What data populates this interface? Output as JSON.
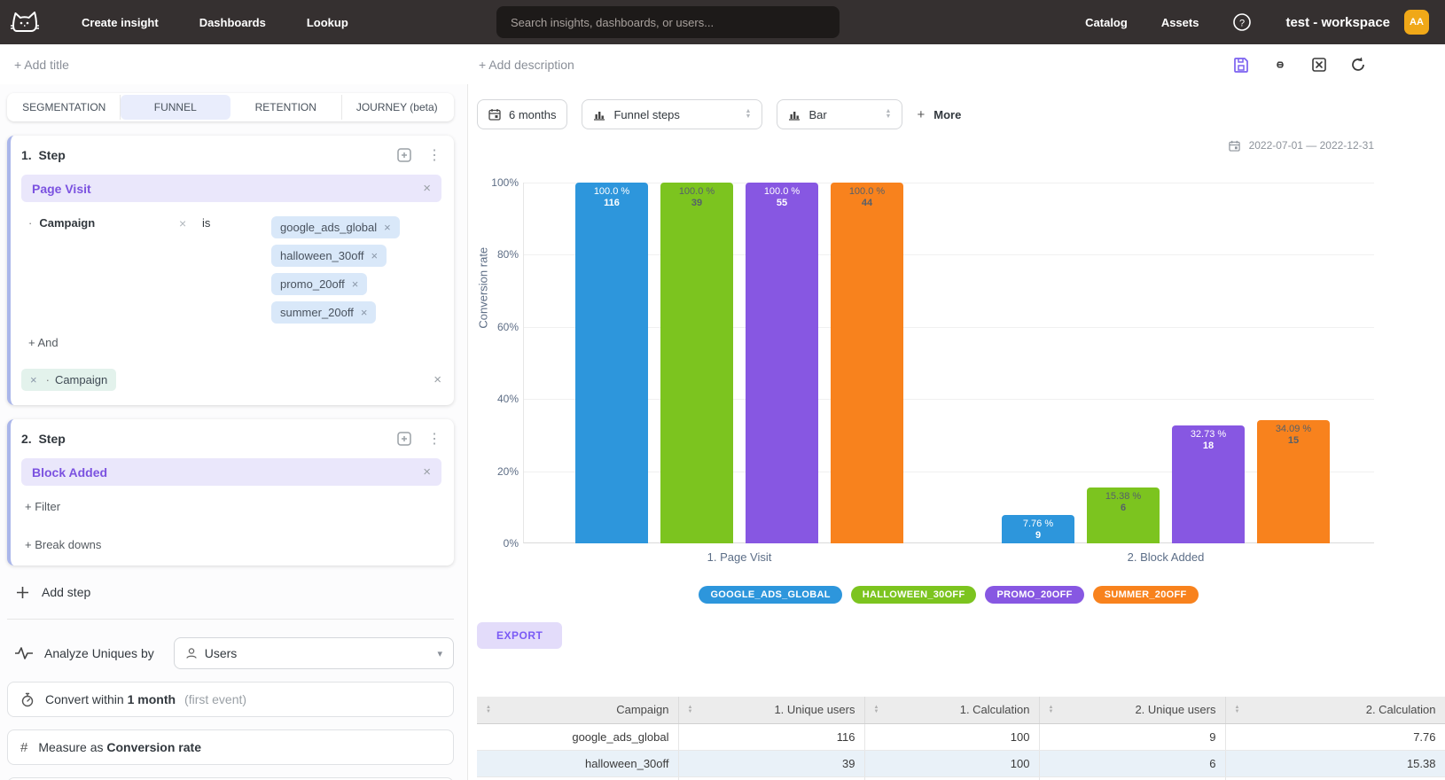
{
  "nav": {
    "links": [
      {
        "id": "create-insight",
        "label": "Create insight"
      },
      {
        "id": "dashboards",
        "label": "Dashboards"
      },
      {
        "id": "lookup",
        "label": "Lookup"
      }
    ],
    "search_placeholder": "Search insights, dashboards, or users...",
    "right_links": [
      {
        "id": "catalog",
        "label": "Catalog"
      },
      {
        "id": "assets",
        "label": "Assets"
      }
    ],
    "workspace": "test - workspace",
    "avatar": "AA"
  },
  "header": {
    "add_title": "+ Add title",
    "add_description": "+ Add description"
  },
  "tabs": [
    {
      "label": "SEGMENTATION",
      "active": false
    },
    {
      "label": "FUNNEL",
      "active": true
    },
    {
      "label": "RETENTION",
      "active": false
    },
    {
      "label": "JOURNEY (beta)",
      "active": false
    }
  ],
  "steps": {
    "0": {
      "number": "1.",
      "title": "Step",
      "event": "Page Visit",
      "filter_property": "Campaign",
      "filter_operator": "is",
      "filter_values": [
        "google_ads_global",
        "halloween_30off",
        "promo_20off",
        "summer_20off"
      ],
      "add_and": "+ And",
      "breakdown": "Campaign"
    },
    "1": {
      "number": "2.",
      "title": "Step",
      "event": "Block Added",
      "add_filter": "+ Filter",
      "add_breakdowns": "+ Break downs"
    }
  },
  "footer_controls": {
    "add_step": "Add step",
    "analyze_label": "Analyze Uniques by",
    "analyze_value": "Users",
    "convert_prefix": "Convert within",
    "convert_value": "1 month",
    "convert_suffix": "(first event)",
    "measure_prefix": "Measure as",
    "measure_value": "Conversion rate"
  },
  "chart_controls": {
    "range": "6 months",
    "view": "Funnel steps",
    "chart_type": "Bar",
    "more": "More",
    "date_range": "2022-07-01 — 2022-12-31"
  },
  "chart_data": {
    "type": "bar",
    "ylabel": "Conversion rate",
    "ylim": [
      0,
      100
    ],
    "yticks": [
      "100%",
      "80%",
      "60%",
      "40%",
      "20%",
      "0%"
    ],
    "grid": true,
    "legend_position": "bottom",
    "categories": [
      "1. Page Visit",
      "2. Block Added"
    ],
    "series": [
      {
        "name": "GOOGLE_ADS_GLOBAL",
        "color": "#2d96dc",
        "label_color": "#ffffff",
        "values": [
          100.0,
          7.76
        ],
        "value_labels": [
          "100.0 %",
          "7.76 %"
        ],
        "counts": [
          "116",
          "9"
        ]
      },
      {
        "name": "HALLOWEEN_30OFF",
        "color": "#7cc41f",
        "label_color": "#56606a",
        "values": [
          100.0,
          15.38
        ],
        "value_labels": [
          "100.0 %",
          "15.38 %"
        ],
        "counts": [
          "39",
          "6"
        ]
      },
      {
        "name": "PROMO_20OFF",
        "color": "#8757e2",
        "label_color": "#ffffff",
        "values": [
          100.0,
          32.73
        ],
        "value_labels": [
          "100.0 %",
          "32.73 %"
        ],
        "counts": [
          "55",
          "18"
        ]
      },
      {
        "name": "SUMMER_20OFF",
        "color": "#f8821d",
        "label_color": "#56606a",
        "values": [
          100.0,
          34.09
        ],
        "value_labels": [
          "100.0 %",
          "34.09 %"
        ],
        "counts": [
          "44",
          "15"
        ]
      }
    ]
  },
  "export_label": "EXPORT",
  "table": {
    "columns": [
      "Campaign",
      "1. Unique users",
      "1. Calculation",
      "2. Unique users",
      "2. Calculation"
    ],
    "rows": [
      [
        "google_ads_global",
        "116",
        "100",
        "9",
        "7.76"
      ],
      [
        "halloween_30off",
        "39",
        "100",
        "6",
        "15.38"
      ]
    ]
  }
}
